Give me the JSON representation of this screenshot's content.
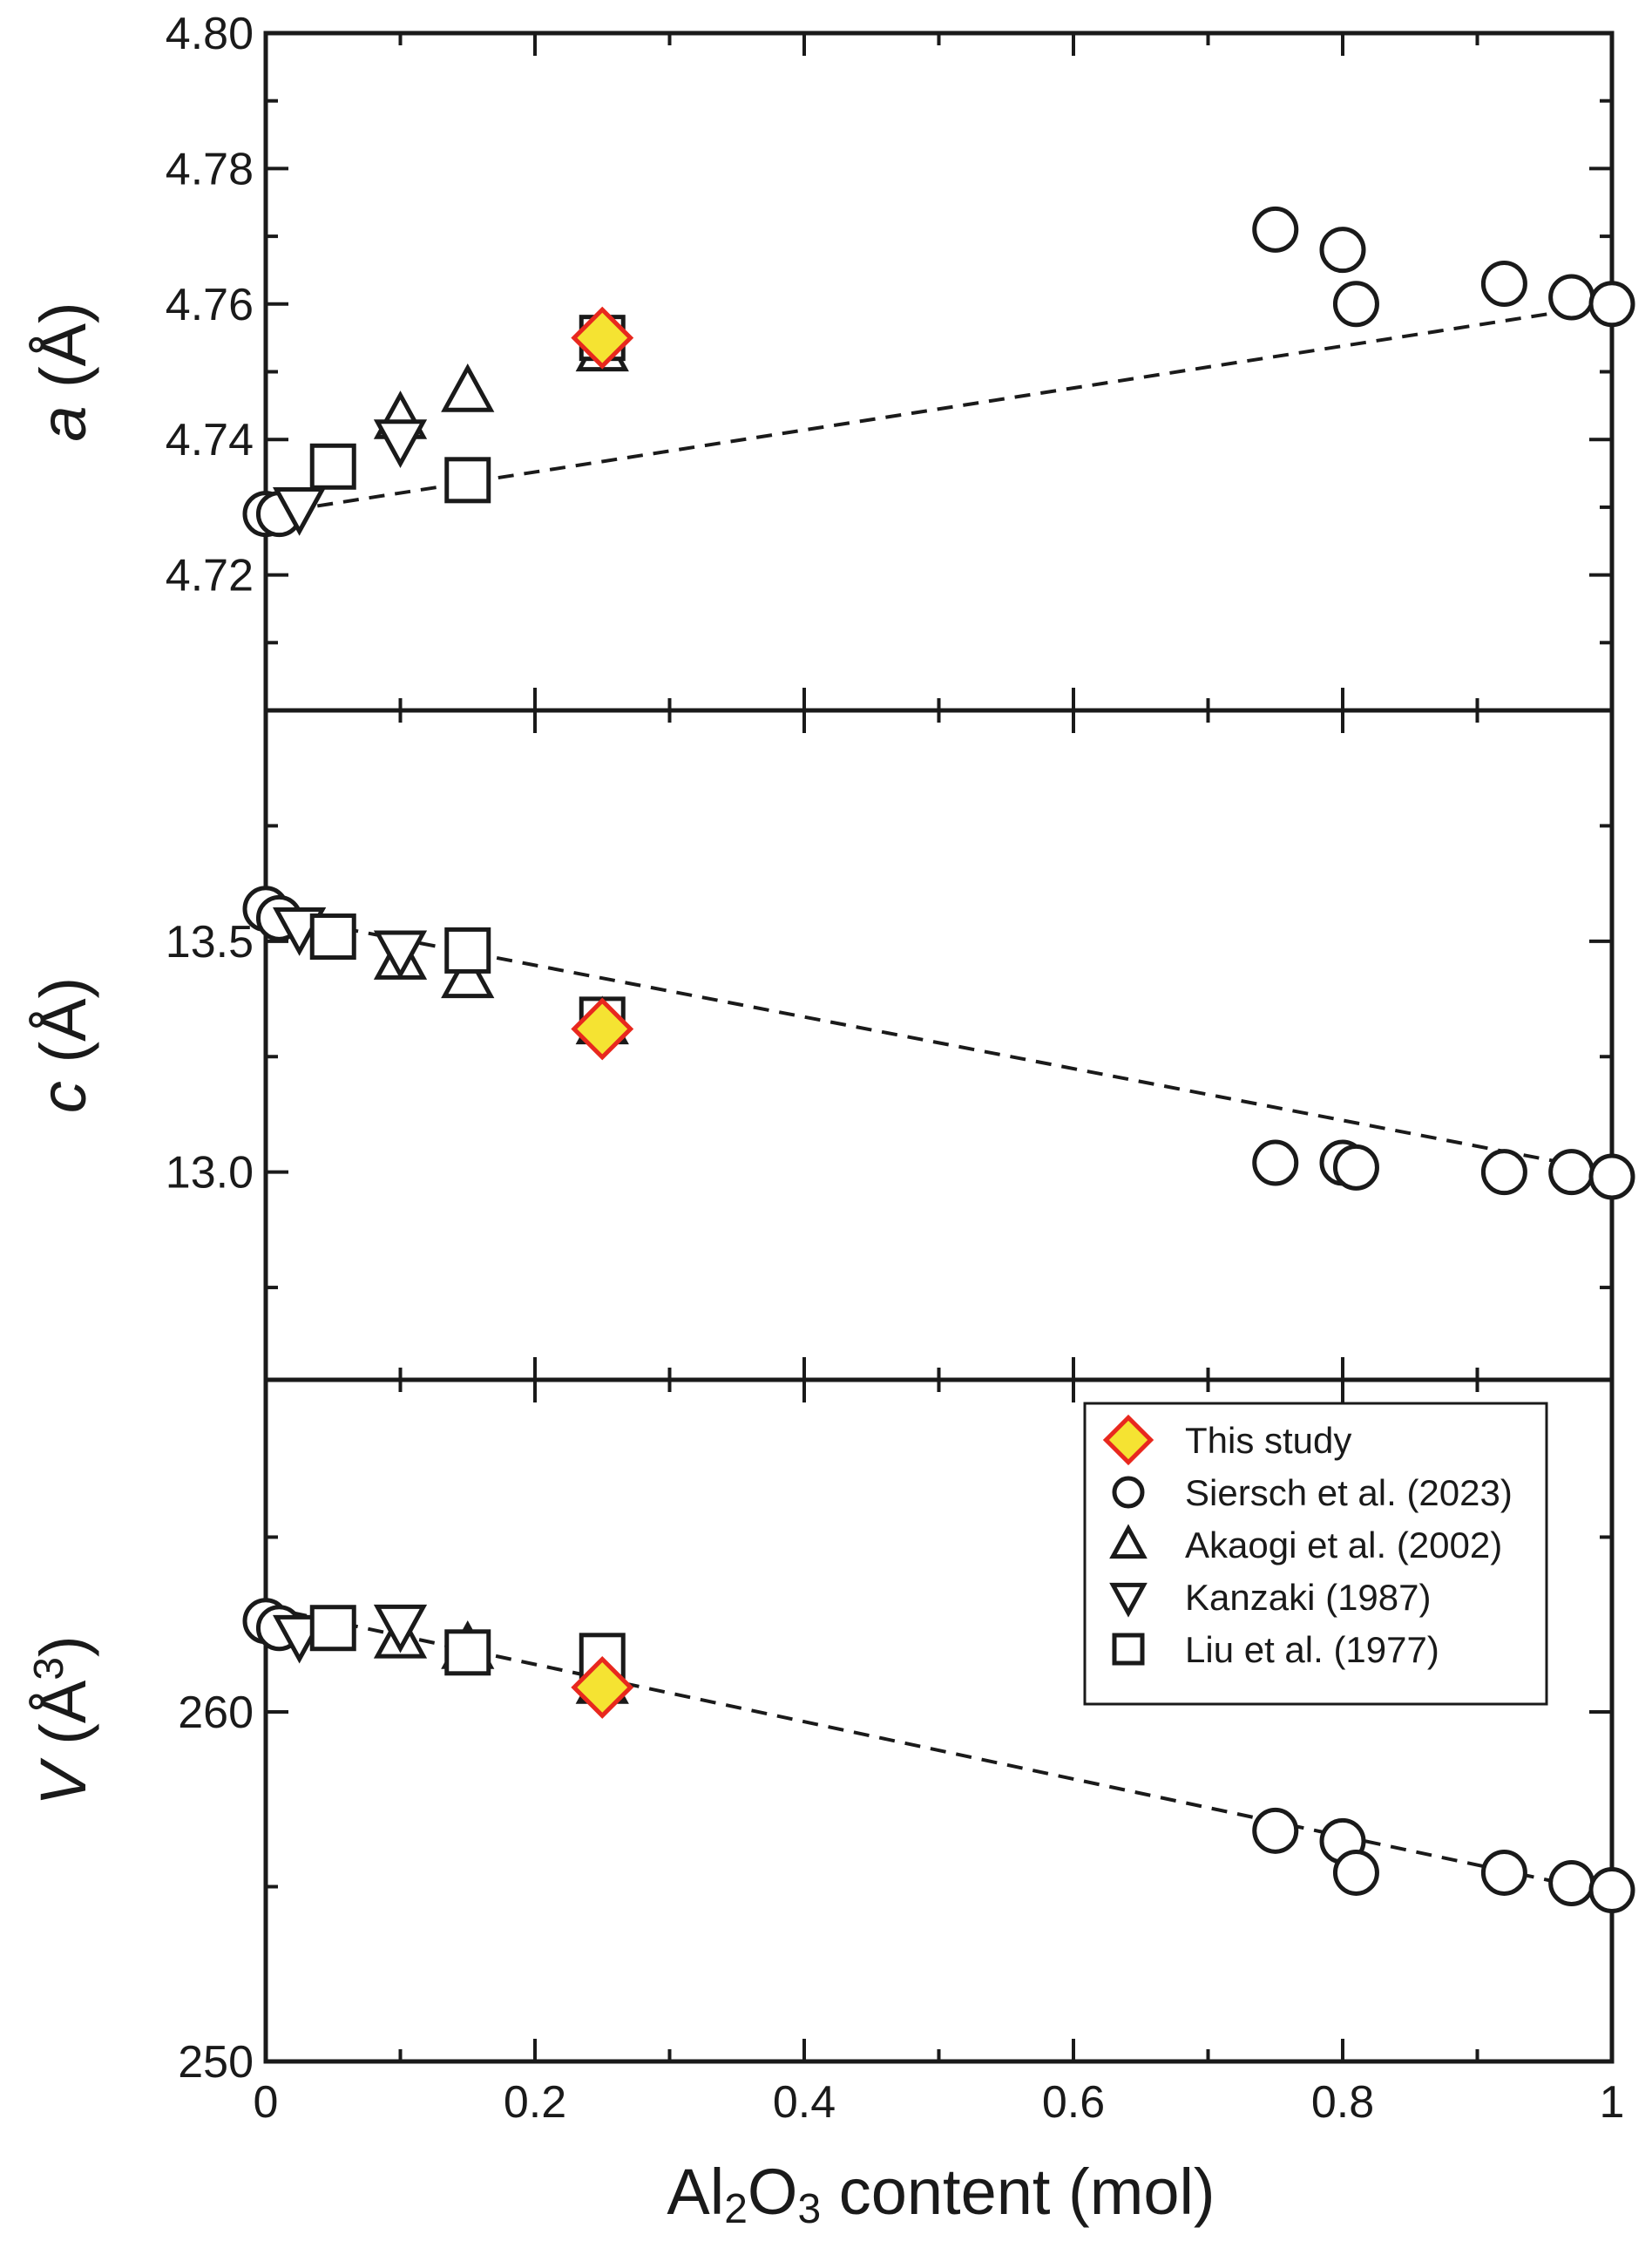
{
  "chart_data": {
    "type": "scatter",
    "xlabel_parts": [
      "Al",
      "2",
      "O",
      "3",
      " content (mol)"
    ],
    "xlim": [
      0,
      1
    ],
    "xticks": [
      0,
      0.2,
      0.4,
      0.6,
      0.8,
      1
    ],
    "xtick_labels": [
      "0",
      "0.2",
      "0.4",
      "0.6",
      "0.8",
      "1"
    ],
    "colors": {
      "marker_edge": "#1a1a1a",
      "this_study_fill": "#f5e332",
      "this_study_edge": "#e8281e"
    },
    "legend": {
      "placement": "upper-right of bottom panel",
      "entries": [
        {
          "name": "This study",
          "marker": "diamond"
        },
        {
          "name": "Siersch et al. (2023)",
          "marker": "circle"
        },
        {
          "name": "Akaogi et al. (2002)",
          "marker": "triangle-up"
        },
        {
          "name": "Kanzaki (1987)",
          "marker": "triangle-down"
        },
        {
          "name": "Liu et al. (1977)",
          "marker": "square"
        }
      ]
    },
    "panels": [
      {
        "id": "a",
        "ylabel_var": "a",
        "ylabel_unit": " (Å)",
        "ylim": [
          4.7,
          4.8
        ],
        "yticks": [
          4.72,
          4.74,
          4.76,
          4.78,
          4.8
        ],
        "ytick_labels": [
          "4.72",
          "4.74",
          "4.76",
          "4.78",
          "4.80"
        ],
        "trendline": [
          [
            0,
            4.729
          ],
          [
            1,
            4.76
          ]
        ],
        "series": [
          {
            "name": "Siersch et al. (2023)",
            "marker": "circle",
            "points": [
              [
                0,
                4.729
              ],
              [
                0.01,
                4.729
              ],
              [
                0.75,
                4.771
              ],
              [
                0.8,
                4.768
              ],
              [
                0.81,
                4.76
              ],
              [
                0.92,
                4.763
              ],
              [
                0.97,
                4.761
              ],
              [
                1.0,
                4.76
              ]
            ]
          },
          {
            "name": "Akaogi et al. (2002)",
            "marker": "triangle-up",
            "points": [
              [
                0.1,
                4.743
              ],
              [
                0.15,
                4.747
              ],
              [
                0.25,
                4.753
              ]
            ]
          },
          {
            "name": "Kanzaki (1987)",
            "marker": "triangle-down",
            "points": [
              [
                0.025,
                4.73
              ],
              [
                0.1,
                4.74
              ]
            ]
          },
          {
            "name": "Liu et al. (1977)",
            "marker": "square",
            "points": [
              [
                0.05,
                4.736
              ],
              [
                0.15,
                4.734
              ],
              [
                0.25,
                4.755
              ]
            ]
          },
          {
            "name": "This study",
            "marker": "diamond",
            "points": [
              [
                0.25,
                4.755
              ]
            ]
          }
        ]
      },
      {
        "id": "c",
        "ylabel_var": "c",
        "ylabel_unit": " (Å)",
        "ylim": [
          12.55,
          14.0
        ],
        "yticks": [
          13.0,
          13.5
        ],
        "ytick_labels": [
          "13.0",
          "13.5"
        ],
        "trendline": [
          [
            0,
            13.56
          ],
          [
            1,
            13.0
          ]
        ],
        "series": [
          {
            "name": "Siersch et al. (2023)",
            "marker": "circle",
            "points": [
              [
                0,
                13.57
              ],
              [
                0.01,
                13.55
              ],
              [
                0.75,
                13.02
              ],
              [
                0.8,
                13.02
              ],
              [
                0.81,
                13.01
              ],
              [
                0.92,
                13.0
              ],
              [
                0.97,
                13.0
              ],
              [
                1.0,
                12.99
              ]
            ]
          },
          {
            "name": "Akaogi et al. (2002)",
            "marker": "triangle-up",
            "points": [
              [
                0.1,
                13.46
              ],
              [
                0.15,
                13.42
              ],
              [
                0.25,
                13.32
              ]
            ]
          },
          {
            "name": "Kanzaki (1987)",
            "marker": "triangle-down",
            "points": [
              [
                0.025,
                13.53
              ],
              [
                0.1,
                13.48
              ]
            ]
          },
          {
            "name": "Liu et al. (1977)",
            "marker": "square",
            "points": [
              [
                0.05,
                13.51
              ],
              [
                0.15,
                13.48
              ],
              [
                0.25,
                13.33
              ]
            ]
          },
          {
            "name": "This study",
            "marker": "diamond",
            "points": [
              [
                0.25,
                13.31
              ]
            ]
          }
        ]
      },
      {
        "id": "V",
        "ylabel_var": "V",
        "ylabel_unit": " (Å",
        "ylabel_sup": "3",
        "ylabel_close": ")",
        "ylim": [
          250,
          269.5
        ],
        "yticks": [
          250,
          260
        ],
        "ytick_labels": [
          "250",
          "260"
        ],
        "trendline": [
          [
            0,
            263.0
          ],
          [
            1,
            254.8
          ]
        ],
        "series": [
          {
            "name": "Siersch et al. (2023)",
            "marker": "circle",
            "points": [
              [
                0,
                262.6
              ],
              [
                0.01,
                262.4
              ],
              [
                0.75,
                256.6
              ],
              [
                0.8,
                256.3
              ],
              [
                0.81,
                255.4
              ],
              [
                0.92,
                255.4
              ],
              [
                0.97,
                255.1
              ],
              [
                1.0,
                254.9
              ]
            ]
          },
          {
            "name": "Akaogi et al. (2002)",
            "marker": "triangle-up",
            "points": [
              [
                0.1,
                262.1
              ],
              [
                0.15,
                261.8
              ],
              [
                0.25,
                260.8
              ]
            ]
          },
          {
            "name": "Kanzaki (1987)",
            "marker": "triangle-down",
            "points": [
              [
                0.025,
                262.2
              ],
              [
                0.1,
                262.5
              ]
            ]
          },
          {
            "name": "Liu et al. (1977)",
            "marker": "square",
            "points": [
              [
                0.05,
                262.4
              ],
              [
                0.15,
                261.7
              ],
              [
                0.25,
                261.6
              ]
            ]
          },
          {
            "name": "This study",
            "marker": "diamond",
            "points": [
              [
                0.25,
                260.7
              ]
            ]
          }
        ]
      }
    ]
  }
}
